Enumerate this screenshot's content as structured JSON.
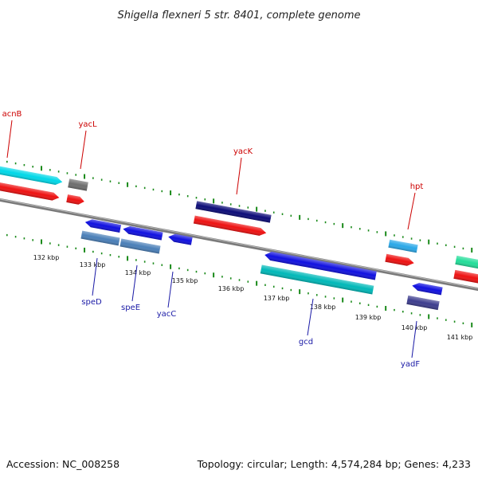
{
  "title": "Shigella flexneri 5 str. 8401, complete genome",
  "footer": {
    "accession": "Accession: NC_008258",
    "summary": "Topology: circular; Length: 4,574,284 bp; Genes: 4,233"
  },
  "genes_top": [
    {
      "name": "acnB"
    },
    {
      "name": "yacL"
    },
    {
      "name": "yacK"
    },
    {
      "name": "hpt"
    }
  ],
  "genes_bottom": [
    {
      "name": "speD"
    },
    {
      "name": "speE"
    },
    {
      "name": "yacC"
    },
    {
      "name": "gcd"
    },
    {
      "name": "yadF"
    }
  ],
  "kbp_ticks": [
    "132 kbp",
    "133 kbp",
    "134 kbp",
    "135 kbp",
    "136 kbp",
    "137 kbp",
    "138 kbp",
    "139 kbp",
    "140 kbp",
    "141 kbp"
  ],
  "colors": {
    "backbone": "#808080",
    "tick_green": "#1a8a1a",
    "cyan": "#00d8e8",
    "red": "#ee1111",
    "gray": "#6e6e6e",
    "navy": "#0c0c78",
    "blue": "#1010e0",
    "steelblue": "#4a7fb8",
    "teal": "#00b8b8",
    "skyblue": "#2aa8e8",
    "slate": "#3d3d8e",
    "mint": "#22dd99"
  }
}
